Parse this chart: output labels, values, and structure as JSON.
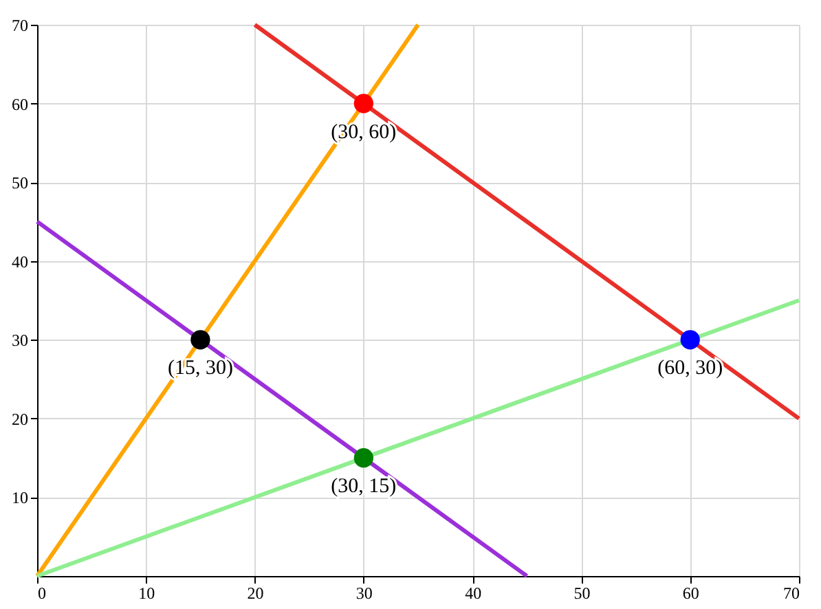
{
  "chart_data": {
    "type": "line",
    "xlim": [
      0,
      70
    ],
    "ylim": [
      0,
      70
    ],
    "xticks": [
      0,
      10,
      20,
      30,
      40,
      50,
      60,
      70
    ],
    "yticks": [
      10,
      20,
      30,
      40,
      50,
      60,
      70
    ],
    "grid": true,
    "series": [
      {
        "color": "#ffa500",
        "x": [
          0,
          35
        ],
        "values": [
          0,
          70
        ]
      },
      {
        "color": "#e8302a",
        "x": [
          20,
          70
        ],
        "values": [
          70,
          20
        ]
      },
      {
        "color": "#9b30d9",
        "x": [
          0,
          45
        ],
        "values": [
          45,
          0
        ]
      },
      {
        "color": "#90ee90",
        "x": [
          0,
          70
        ],
        "values": [
          0,
          35
        ]
      },
      {
        "type": "scatter",
        "color": "#ff0000",
        "x": [
          30
        ],
        "values": [
          60
        ]
      },
      {
        "type": "scatter",
        "color": "#0000ff",
        "x": [
          60
        ],
        "values": [
          30
        ]
      },
      {
        "type": "scatter",
        "color": "#000000",
        "x": [
          15
        ],
        "values": [
          30
        ]
      },
      {
        "type": "scatter",
        "color": "#008000",
        "x": [
          30
        ],
        "values": [
          15
        ]
      }
    ],
    "annotations": [
      {
        "text": "(30, 60)",
        "x": 30,
        "y": 60
      },
      {
        "text": "(60, 30)",
        "x": 60,
        "y": 30
      },
      {
        "text": "(15, 30)",
        "x": 15,
        "y": 30
      },
      {
        "text": "(30, 15)",
        "x": 30,
        "y": 15
      }
    ]
  }
}
